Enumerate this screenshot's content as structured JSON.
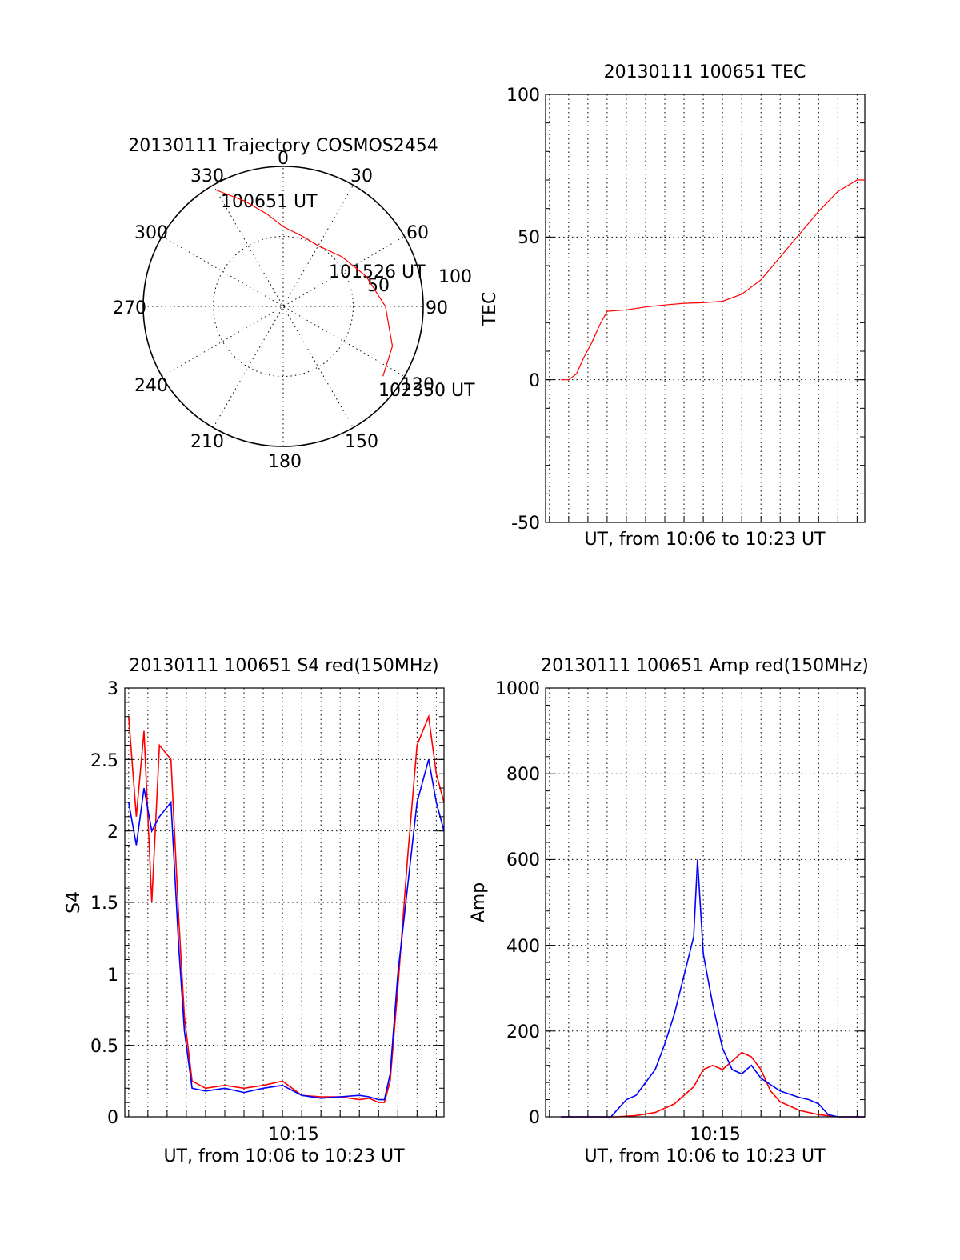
{
  "chart_data": [
    {
      "type": "polar",
      "title": "20130111 Trajectory COSMOS2454",
      "azimuth_labels": [
        "0",
        "30",
        "60",
        "90",
        "120",
        "150",
        "180",
        "210",
        "240",
        "270",
        "300",
        "330"
      ],
      "radial_labels": [
        "50",
        "100"
      ],
      "radial_range": [
        0,
        100
      ],
      "track": {
        "color": "#ff0000",
        "points": [
          {
            "az": 330,
            "r": 96
          },
          {
            "az": 340,
            "r": 80
          },
          {
            "az": 350,
            "r": 67
          },
          {
            "az": 0,
            "r": 57
          },
          {
            "az": 15,
            "r": 52
          },
          {
            "az": 30,
            "r": 50
          },
          {
            "az": 50,
            "r": 55
          },
          {
            "az": 70,
            "r": 63
          },
          {
            "az": 90,
            "r": 73
          },
          {
            "az": 110,
            "r": 83
          },
          {
            "az": 125,
            "r": 87
          }
        ]
      },
      "annotations": [
        "100651 UT",
        "101526 UT",
        "102350 UT"
      ]
    },
    {
      "type": "line",
      "title": "20130111 100651 TEC",
      "ylabel": "TEC",
      "xlabel": "UT, from 10:06 to 10:23 UT",
      "ylim": [
        -50,
        100
      ],
      "yticks": [
        "100",
        "50",
        "0",
        "-50"
      ],
      "x_range_min": [
        6.8,
        23.4
      ],
      "grid": true,
      "series": [
        {
          "color": "#ff0000",
          "x": [
            7.6,
            8.0,
            8.4,
            8.8,
            9.2,
            9.6,
            10.0,
            11.0,
            12.0,
            13.0,
            14.0,
            15.0,
            16.0,
            17.0,
            18.0,
            19.0,
            20.0,
            21.0,
            22.0,
            23.0,
            23.4
          ],
          "y": [
            0,
            0,
            2,
            8,
            13,
            19,
            24,
            24.5,
            25.5,
            26.2,
            26.8,
            27,
            27.5,
            30,
            35,
            43,
            51,
            59,
            66,
            70,
            70
          ]
        }
      ]
    },
    {
      "type": "line",
      "title": "20130111 100651 S4 red(150MHz)",
      "ylabel": "S4",
      "xlabel": "UT, from 10:06 to 10:23 UT",
      "xtick_label": "10:15",
      "ylim": [
        0,
        3
      ],
      "yticks": [
        "3",
        "2.5",
        "2",
        "1.5",
        "1",
        "0.5",
        "0"
      ],
      "x_range_min": [
        6.8,
        23.4
      ],
      "grid": true,
      "series": [
        {
          "color": "#ff0000",
          "x": [
            7.0,
            7.4,
            7.8,
            8.2,
            8.6,
            9.2,
            9.6,
            9.9,
            10.3,
            11,
            12,
            13,
            14,
            15,
            16,
            17,
            18,
            19,
            19.5,
            20.0,
            20.3,
            20.6,
            21.0,
            21.5,
            22.0,
            22.6,
            23.0,
            23.4
          ],
          "y": [
            2.8,
            2.1,
            2.7,
            1.5,
            2.6,
            2.5,
            1.4,
            0.7,
            0.25,
            0.2,
            0.22,
            0.2,
            0.22,
            0.25,
            0.15,
            0.14,
            0.14,
            0.12,
            0.13,
            0.1,
            0.1,
            0.25,
            0.9,
            1.8,
            2.6,
            2.8,
            2.4,
            2.2
          ]
        },
        {
          "color": "#0000ff",
          "x": [
            7.0,
            7.4,
            7.8,
            8.2,
            8.6,
            9.2,
            9.6,
            9.9,
            10.3,
            11,
            12,
            13,
            14,
            15,
            16,
            17,
            18,
            19,
            19.5,
            20.0,
            20.3,
            20.6,
            21.0,
            21.5,
            22.0,
            22.6,
            23.0,
            23.4
          ],
          "y": [
            2.2,
            1.9,
            2.3,
            2.0,
            2.1,
            2.2,
            1.2,
            0.6,
            0.2,
            0.18,
            0.2,
            0.17,
            0.2,
            0.22,
            0.15,
            0.13,
            0.14,
            0.15,
            0.14,
            0.12,
            0.12,
            0.3,
            1.0,
            1.6,
            2.2,
            2.5,
            2.2,
            2.0
          ]
        }
      ]
    },
    {
      "type": "line",
      "title": "20130111 100651 Amp red(150MHz)",
      "ylabel": "Amp",
      "xlabel": "UT, from 10:06 to 10:23 UT",
      "xtick_label": "10:15",
      "ylim": [
        0,
        1000
      ],
      "yticks": [
        "1000",
        "800",
        "600",
        "400",
        "200",
        "0"
      ],
      "x_range_min": [
        6.8,
        23.4
      ],
      "grid": true,
      "series": [
        {
          "color": "#ff0000",
          "x": [
            7.6,
            9.0,
            10.5,
            11.5,
            12.5,
            13.5,
            14.5,
            15.0,
            15.5,
            16.0,
            16.5,
            17.0,
            17.5,
            18.0,
            18.5,
            19.0,
            20.0,
            21.0,
            22.0,
            23.4
          ],
          "y": [
            0,
            0,
            0,
            3,
            10,
            30,
            70,
            110,
            120,
            110,
            130,
            150,
            140,
            110,
            60,
            35,
            15,
            5,
            0,
            0
          ]
        },
        {
          "color": "#0000ff",
          "x": [
            7.6,
            9.0,
            10.2,
            10.6,
            11.0,
            11.5,
            12.0,
            12.5,
            13.0,
            13.5,
            14.0,
            14.5,
            14.7,
            15.0,
            15.5,
            16.0,
            16.5,
            17.0,
            17.5,
            18.0,
            19.0,
            20.0,
            20.5,
            21.0,
            21.5,
            22.0,
            23.4
          ],
          "y": [
            0,
            0,
            0,
            20,
            40,
            50,
            80,
            110,
            170,
            240,
            330,
            420,
            600,
            380,
            260,
            160,
            110,
            100,
            120,
            90,
            60,
            45,
            40,
            30,
            5,
            0,
            0
          ]
        }
      ]
    }
  ]
}
